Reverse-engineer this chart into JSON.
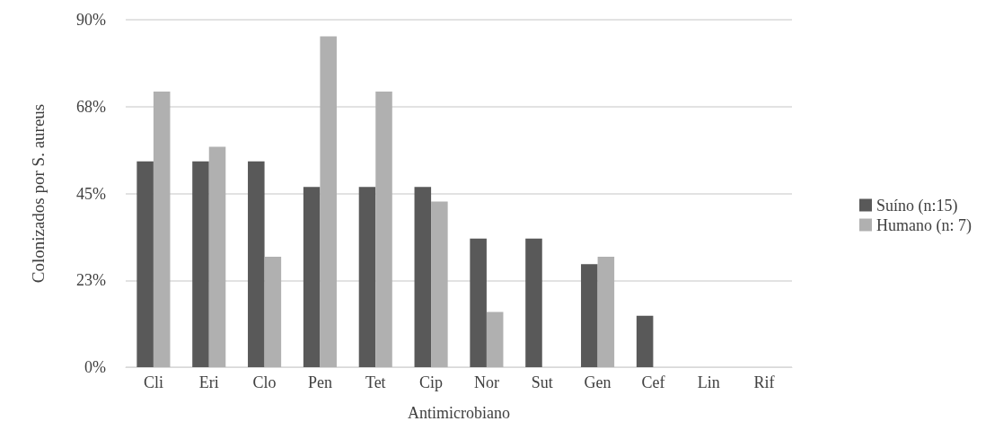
{
  "chart_data": {
    "type": "bar",
    "xlabel": "Antimicrobiano",
    "ylabel": "Colonizados por S. aureus",
    "categories": [
      "Cli",
      "Eri",
      "Clo",
      "Pen",
      "Tet",
      "Cip",
      "Nor",
      "Sut",
      "Gen",
      "Cef",
      "Lin",
      "Rif"
    ],
    "series": [
      {
        "name": "Suíno (n:15)",
        "color": "#595959",
        "values": [
          53.3,
          53.3,
          53.3,
          46.7,
          46.7,
          46.7,
          33.3,
          33.3,
          26.7,
          13.3,
          0,
          0
        ]
      },
      {
        "name": "Humano (n: 7)",
        "color": "#b0b0b0",
        "values": [
          71.4,
          57.1,
          28.6,
          85.7,
          71.4,
          42.9,
          14.3,
          0,
          28.6,
          0,
          0,
          0
        ]
      }
    ],
    "ylim": [
      0,
      90
    ],
    "yticks": [
      {
        "value": 0,
        "label": "0%"
      },
      {
        "value": 22.5,
        "label": "23%"
      },
      {
        "value": 45,
        "label": "45%"
      },
      {
        "value": 67.5,
        "label": "68%"
      },
      {
        "value": 90,
        "label": "90%"
      }
    ],
    "grid": "y",
    "legend": "right"
  }
}
